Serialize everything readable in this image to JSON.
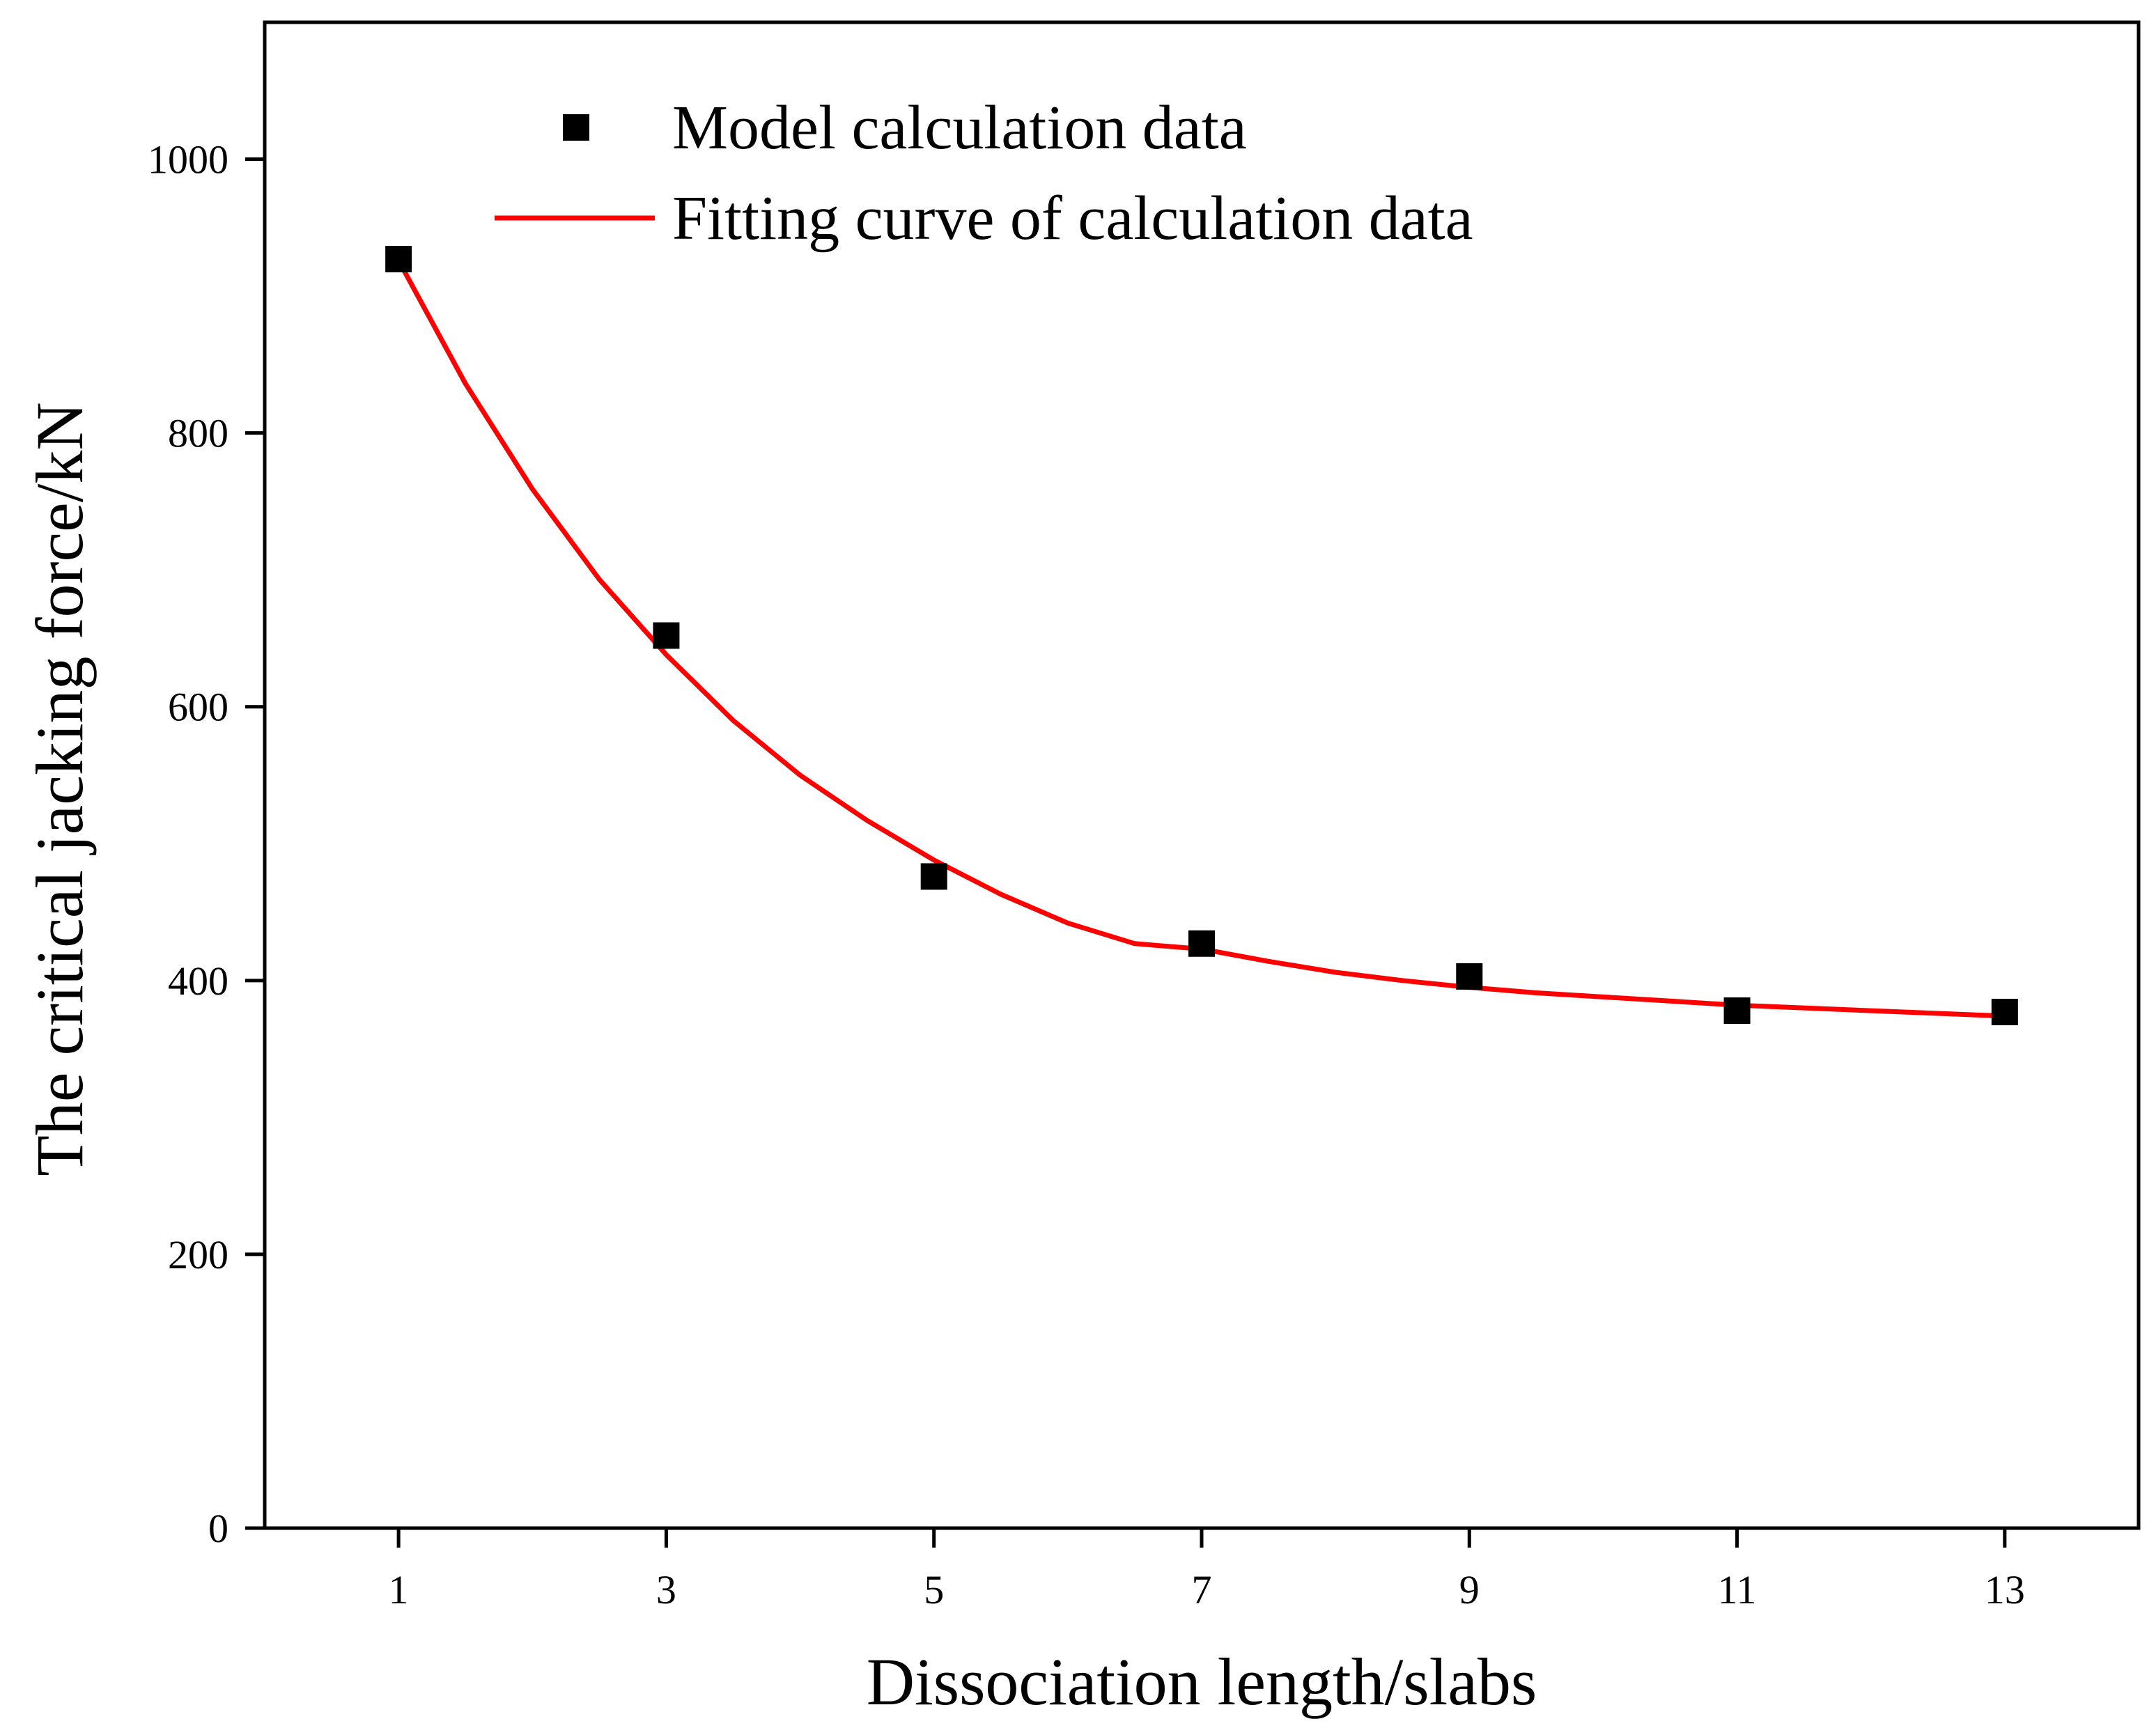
{
  "chart_data": {
    "type": "scatter",
    "title": "",
    "xlabel": "Dissociation length/slabs",
    "ylabel": "The critical jacking force/kN",
    "xlim": [
      0,
      14
    ],
    "ylim": [
      0,
      1100
    ],
    "x_ticks": [
      1,
      3,
      5,
      7,
      9,
      11,
      13
    ],
    "x_tick_labels": [
      "1",
      "3",
      "5",
      "7",
      "9",
      "11",
      "13"
    ],
    "y_ticks": [
      0,
      200,
      400,
      600,
      800,
      1000
    ],
    "y_tick_labels": [
      "0",
      "200",
      "400",
      "600",
      "800",
      "1000"
    ],
    "grid": false,
    "legend_position": "top-left",
    "series": [
      {
        "name": "Model calculation data",
        "kind": "scatter",
        "marker": "square",
        "color": "#000000",
        "x": [
          1,
          3,
          5,
          7,
          9,
          11,
          13
        ],
        "y": [
          927,
          652,
          476,
          427,
          403,
          378,
          377
        ]
      },
      {
        "name": "Fitting curve of calculation data",
        "kind": "line",
        "color": "#ff0000",
        "x": [
          1,
          1.5,
          2,
          2.5,
          3,
          3.5,
          4,
          4.5,
          5,
          5.5,
          6,
          6.5,
          7,
          7.5,
          8,
          8.5,
          9,
          9.5,
          10,
          10.5,
          11,
          11.5,
          12,
          12.5,
          13
        ],
        "y": [
          926,
          836,
          759,
          693,
          638,
          590,
          550,
          517,
          488,
          463,
          442,
          427,
          423,
          414,
          406,
          400,
          395,
          391,
          388,
          385,
          382,
          380,
          378,
          376,
          374
        ]
      }
    ]
  }
}
